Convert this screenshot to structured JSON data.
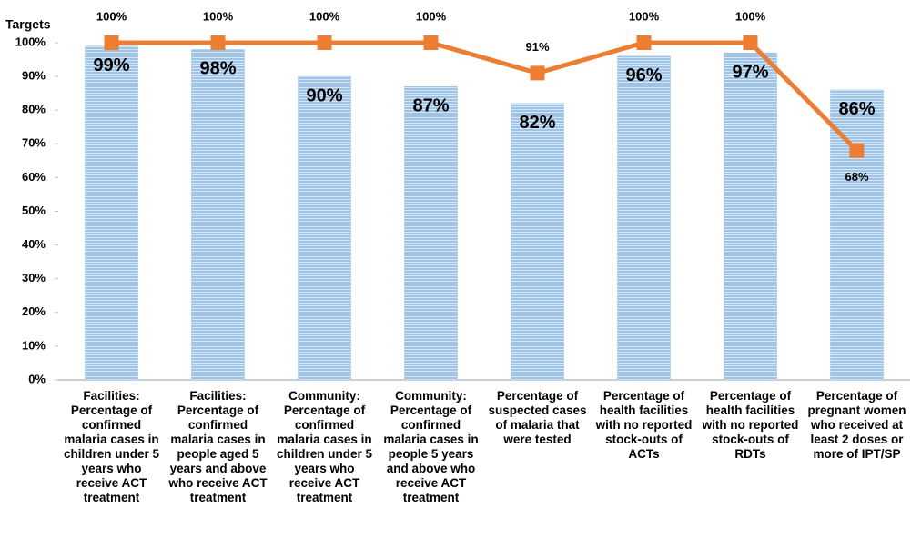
{
  "chart_data": {
    "type": "bar_line",
    "categories": [
      "Facilities: Percentage of confirmed malaria cases in children under 5 years who receive ACT treatment",
      "Facilities: Percentage of confirmed malaria cases in people aged 5 years and above who receive ACT treatment",
      "Community: Percentage of confirmed malaria cases in children under 5 years who receive ACT treatment",
      "Community: Percentage of confirmed malaria cases in people 5 years and above who receive ACT treatment",
      "Percentage of suspected cases of malaria that were tested",
      "Percentage of health facilities with no reported stock-outs of ACTs",
      "Percentage of health facilities with no reported stock-outs of RDTs",
      "Percentage of pregnant women who received at least 2 doses or more of IPT/SP"
    ],
    "series": [
      {
        "type": "bar",
        "color": "#9dc3e6",
        "values": [
          99,
          98,
          90,
          87,
          82,
          96,
          97,
          86
        ],
        "value_labels": [
          "99%",
          "98%",
          "90%",
          "87%",
          "82%",
          "96%",
          "97%",
          "86%"
        ]
      },
      {
        "type": "line",
        "name": "Targets",
        "color": "#ed7d31",
        "values": [
          100,
          100,
          100,
          100,
          91,
          100,
          100,
          68
        ],
        "value_labels": [
          "100%",
          "100%",
          "100%",
          "100%",
          "91%",
          "100%",
          "100%",
          "68%"
        ]
      }
    ],
    "ylim": [
      0,
      100
    ],
    "yticks": [
      {
        "value": 0,
        "label": "0%"
      },
      {
        "value": 10,
        "label": "10%"
      },
      {
        "value": 20,
        "label": "20%"
      },
      {
        "value": 30,
        "label": "30%"
      },
      {
        "value": 40,
        "label": "40%"
      },
      {
        "value": 50,
        "label": "50%"
      },
      {
        "value": 60,
        "label": "60%"
      },
      {
        "value": 70,
        "label": "70%"
      },
      {
        "value": 80,
        "label": "80%"
      },
      {
        "value": 90,
        "label": "90%"
      },
      {
        "value": 100,
        "label": "100%"
      }
    ]
  }
}
